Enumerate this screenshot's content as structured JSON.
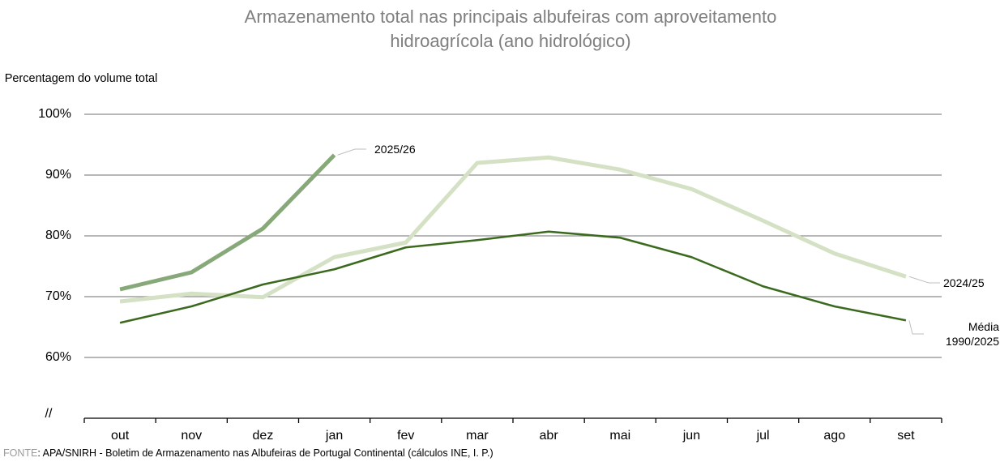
{
  "chart_data": {
    "type": "line",
    "title": "Armazenamento total nas principais albufeiras com aproveitamento hidroagrícola (ano hidrológico)",
    "y_label": "Percentagem do volume total",
    "axis_break": "//",
    "categories": [
      "out",
      "nov",
      "dez",
      "jan",
      "fev",
      "mar",
      "abr",
      "mai",
      "jun",
      "jul",
      "ago",
      "set"
    ],
    "series": [
      {
        "name": "2025/26",
        "color": "#87a878",
        "width": 5,
        "values": [
          71.2,
          74.0,
          81.2,
          93.3,
          null,
          null,
          null,
          null,
          null,
          null,
          null,
          null
        ]
      },
      {
        "name": "2024/25",
        "color": "#d5e1c5",
        "width": 5,
        "values": [
          69.2,
          70.5,
          69.9,
          76.5,
          78.9,
          92.0,
          92.9,
          90.9,
          87.7,
          82.5,
          77.1,
          73.3
        ]
      },
      {
        "name": "Média 1990/2025",
        "color": "#3b6a1f",
        "width": 2.5,
        "values": [
          65.7,
          68.4,
          72.0,
          74.5,
          78.1,
          79.3,
          80.7,
          79.7,
          76.5,
          71.7,
          68.4,
          66.1
        ]
      }
    ],
    "ylim": [
      50,
      100
    ],
    "yticks": [
      {
        "value": 60,
        "label": "60%"
      },
      {
        "value": 70,
        "label": "70%"
      },
      {
        "value": 80,
        "label": "80%"
      },
      {
        "value": 90,
        "label": "90%"
      },
      {
        "value": 100,
        "label": "100%"
      }
    ],
    "grid": true,
    "source_label": "FONTE",
    "source": ": APA/SNIRH - Boletim de Armazenamento nas Albufeiras de Portugal Continental (cálculos INE, I. P.)"
  }
}
